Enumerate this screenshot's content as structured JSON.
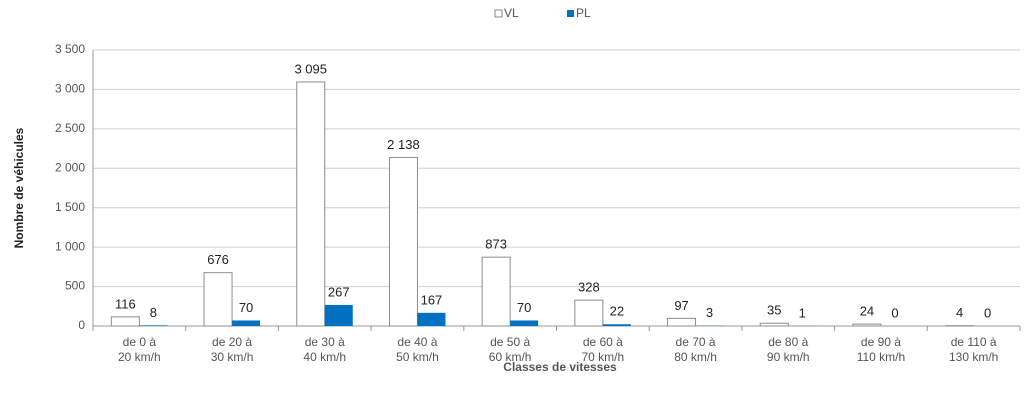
{
  "chart_data": {
    "type": "bar",
    "y_label": "Nombre de véhicules",
    "x_label": "Classes de vitesses",
    "categories": [
      [
        "de 0 à",
        "20 km/h"
      ],
      [
        "de 20 à",
        "30 km/h"
      ],
      [
        "de 30 à",
        "40 km/h"
      ],
      [
        "de 40 à",
        "50 km/h"
      ],
      [
        "de 50 à",
        "60 km/h"
      ],
      [
        "de 60 à",
        "70 km/h"
      ],
      [
        "de 70 à",
        "80 km/h"
      ],
      [
        "de 80 à",
        "90 km/h"
      ],
      [
        "de 90 à",
        "110 km/h"
      ],
      [
        "de 110 à",
        "130 km/h"
      ]
    ],
    "series": [
      {
        "name": "VL",
        "color": "#ffffff",
        "values": [
          116,
          676,
          3095,
          2138,
          873,
          328,
          97,
          35,
          24,
          4
        ],
        "value_labels": [
          "116",
          "676",
          "3 095",
          "2 138",
          "873",
          "328",
          "97",
          "35",
          "24",
          "4"
        ]
      },
      {
        "name": "PL",
        "color": "#0070c0",
        "values": [
          8,
          70,
          267,
          167,
          70,
          22,
          3,
          1,
          0,
          0
        ]
      }
    ],
    "ylim": [
      0,
      3500
    ],
    "yticks": [
      0,
      500,
      {
        "value": 1000,
        "label": "1 000"
      },
      {
        "value": 1500,
        "label": "1 500"
      },
      {
        "value": 2000,
        "label": "2 000"
      },
      {
        "value": 2500,
        "label": "2 500"
      },
      {
        "value": 3000,
        "label": "3 000"
      },
      {
        "value": 3500,
        "label": "3 500"
      }
    ],
    "grid": true,
    "legend": "top"
  }
}
